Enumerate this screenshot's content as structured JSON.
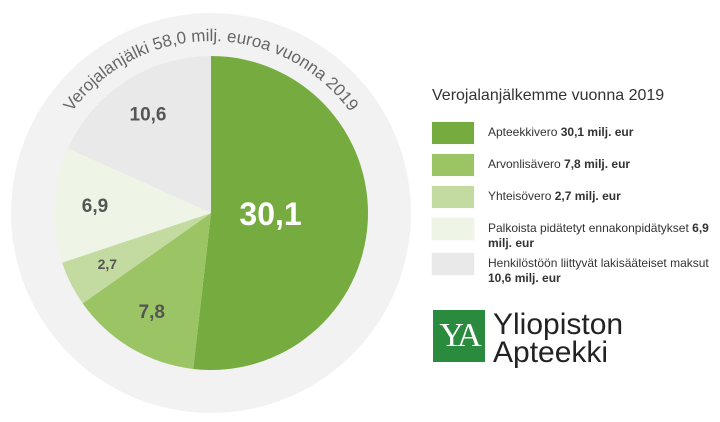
{
  "chart_data": {
    "type": "pie",
    "title": "Verojalanjälki 58,0 milj. euroa vuonna 2019",
    "legend_title": "Verojalanjälkemme vuonna 2019",
    "categories": [
      "Apteekkivero",
      "Arvonlisävero",
      "Yhteisövero",
      "Palkoista pidätetyt ennakonpidätykset",
      "Henkilöstöön liittyvät lakisääteiset maksut"
    ],
    "legend_amounts": [
      "30,1 milj. eur",
      "7,8 milj. eur",
      "2,7 milj. eur",
      "6,9 milj. eur",
      "10,6 milj. eur"
    ],
    "values": [
      30.1,
      7.8,
      2.7,
      6.9,
      10.6
    ],
    "value_labels": [
      "30,1",
      "7,8",
      "2,7",
      "6,9",
      "10,6"
    ],
    "colors": [
      "#76ab3f",
      "#9bc464",
      "#c3dba0",
      "#eff5e6",
      "#e9e9e9"
    ]
  },
  "logo": {
    "mark": "YA",
    "lines": [
      "Yliopiston",
      "Apteekki"
    ]
  }
}
